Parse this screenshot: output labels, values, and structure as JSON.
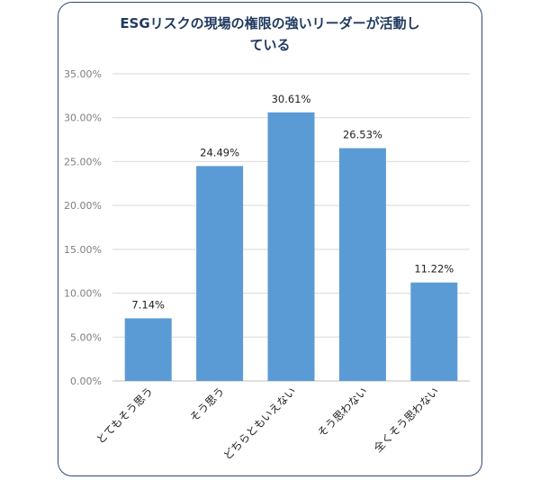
{
  "chart_data": {
    "type": "bar",
    "title_lines": [
      "ESGリスクの現場の権限の強いリーダーが活動し",
      "ている"
    ],
    "categories": [
      "とてもそう思う",
      "そう思う",
      "どちらともいえない",
      "そう思わない",
      "全くそう思わない"
    ],
    "values": [
      7.14,
      24.49,
      30.61,
      26.53,
      11.22
    ],
    "data_labels": [
      "7.14%",
      "24.49%",
      "30.61%",
      "26.53%",
      "11.22%"
    ],
    "y_ticks": [
      "0.00%",
      "5.00%",
      "10.00%",
      "15.00%",
      "20.00%",
      "25.00%",
      "30.00%",
      "35.00%"
    ],
    "ylim": [
      0,
      35
    ],
    "grid": true,
    "bar_color": "#5b9bd5",
    "grid_color": "#d9d9d9",
    "frame_color": "#2c4a73"
  }
}
